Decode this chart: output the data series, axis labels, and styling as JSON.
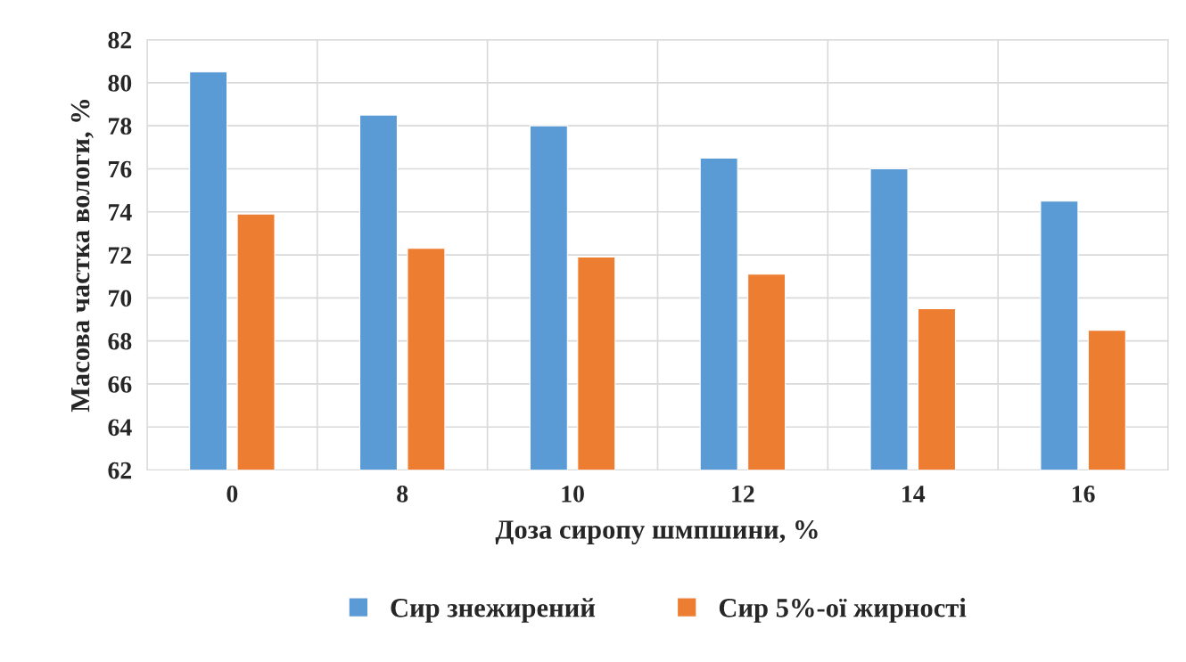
{
  "chart_data": {
    "type": "bar",
    "xlabel": "Доза сиропу шмпшини, %",
    "ylabel": "Масова частка вологи, %",
    "categories": [
      "0",
      "8",
      "10",
      "12",
      "14",
      "16"
    ],
    "series": [
      {
        "name": "Сир знежирений",
        "color": "#5b9bd5",
        "values": [
          80.5,
          78.5,
          78.0,
          76.5,
          76.0,
          74.5
        ]
      },
      {
        "name": "Сир 5%-ої жирності",
        "color": "#ed7d31",
        "values": [
          73.9,
          72.3,
          71.9,
          71.1,
          69.5,
          68.5
        ]
      }
    ],
    "ylim": [
      62,
      82
    ],
    "yticks": [
      62,
      64,
      66,
      68,
      70,
      72,
      74,
      76,
      78,
      80,
      82
    ],
    "grid": true,
    "legend": "bottom"
  }
}
